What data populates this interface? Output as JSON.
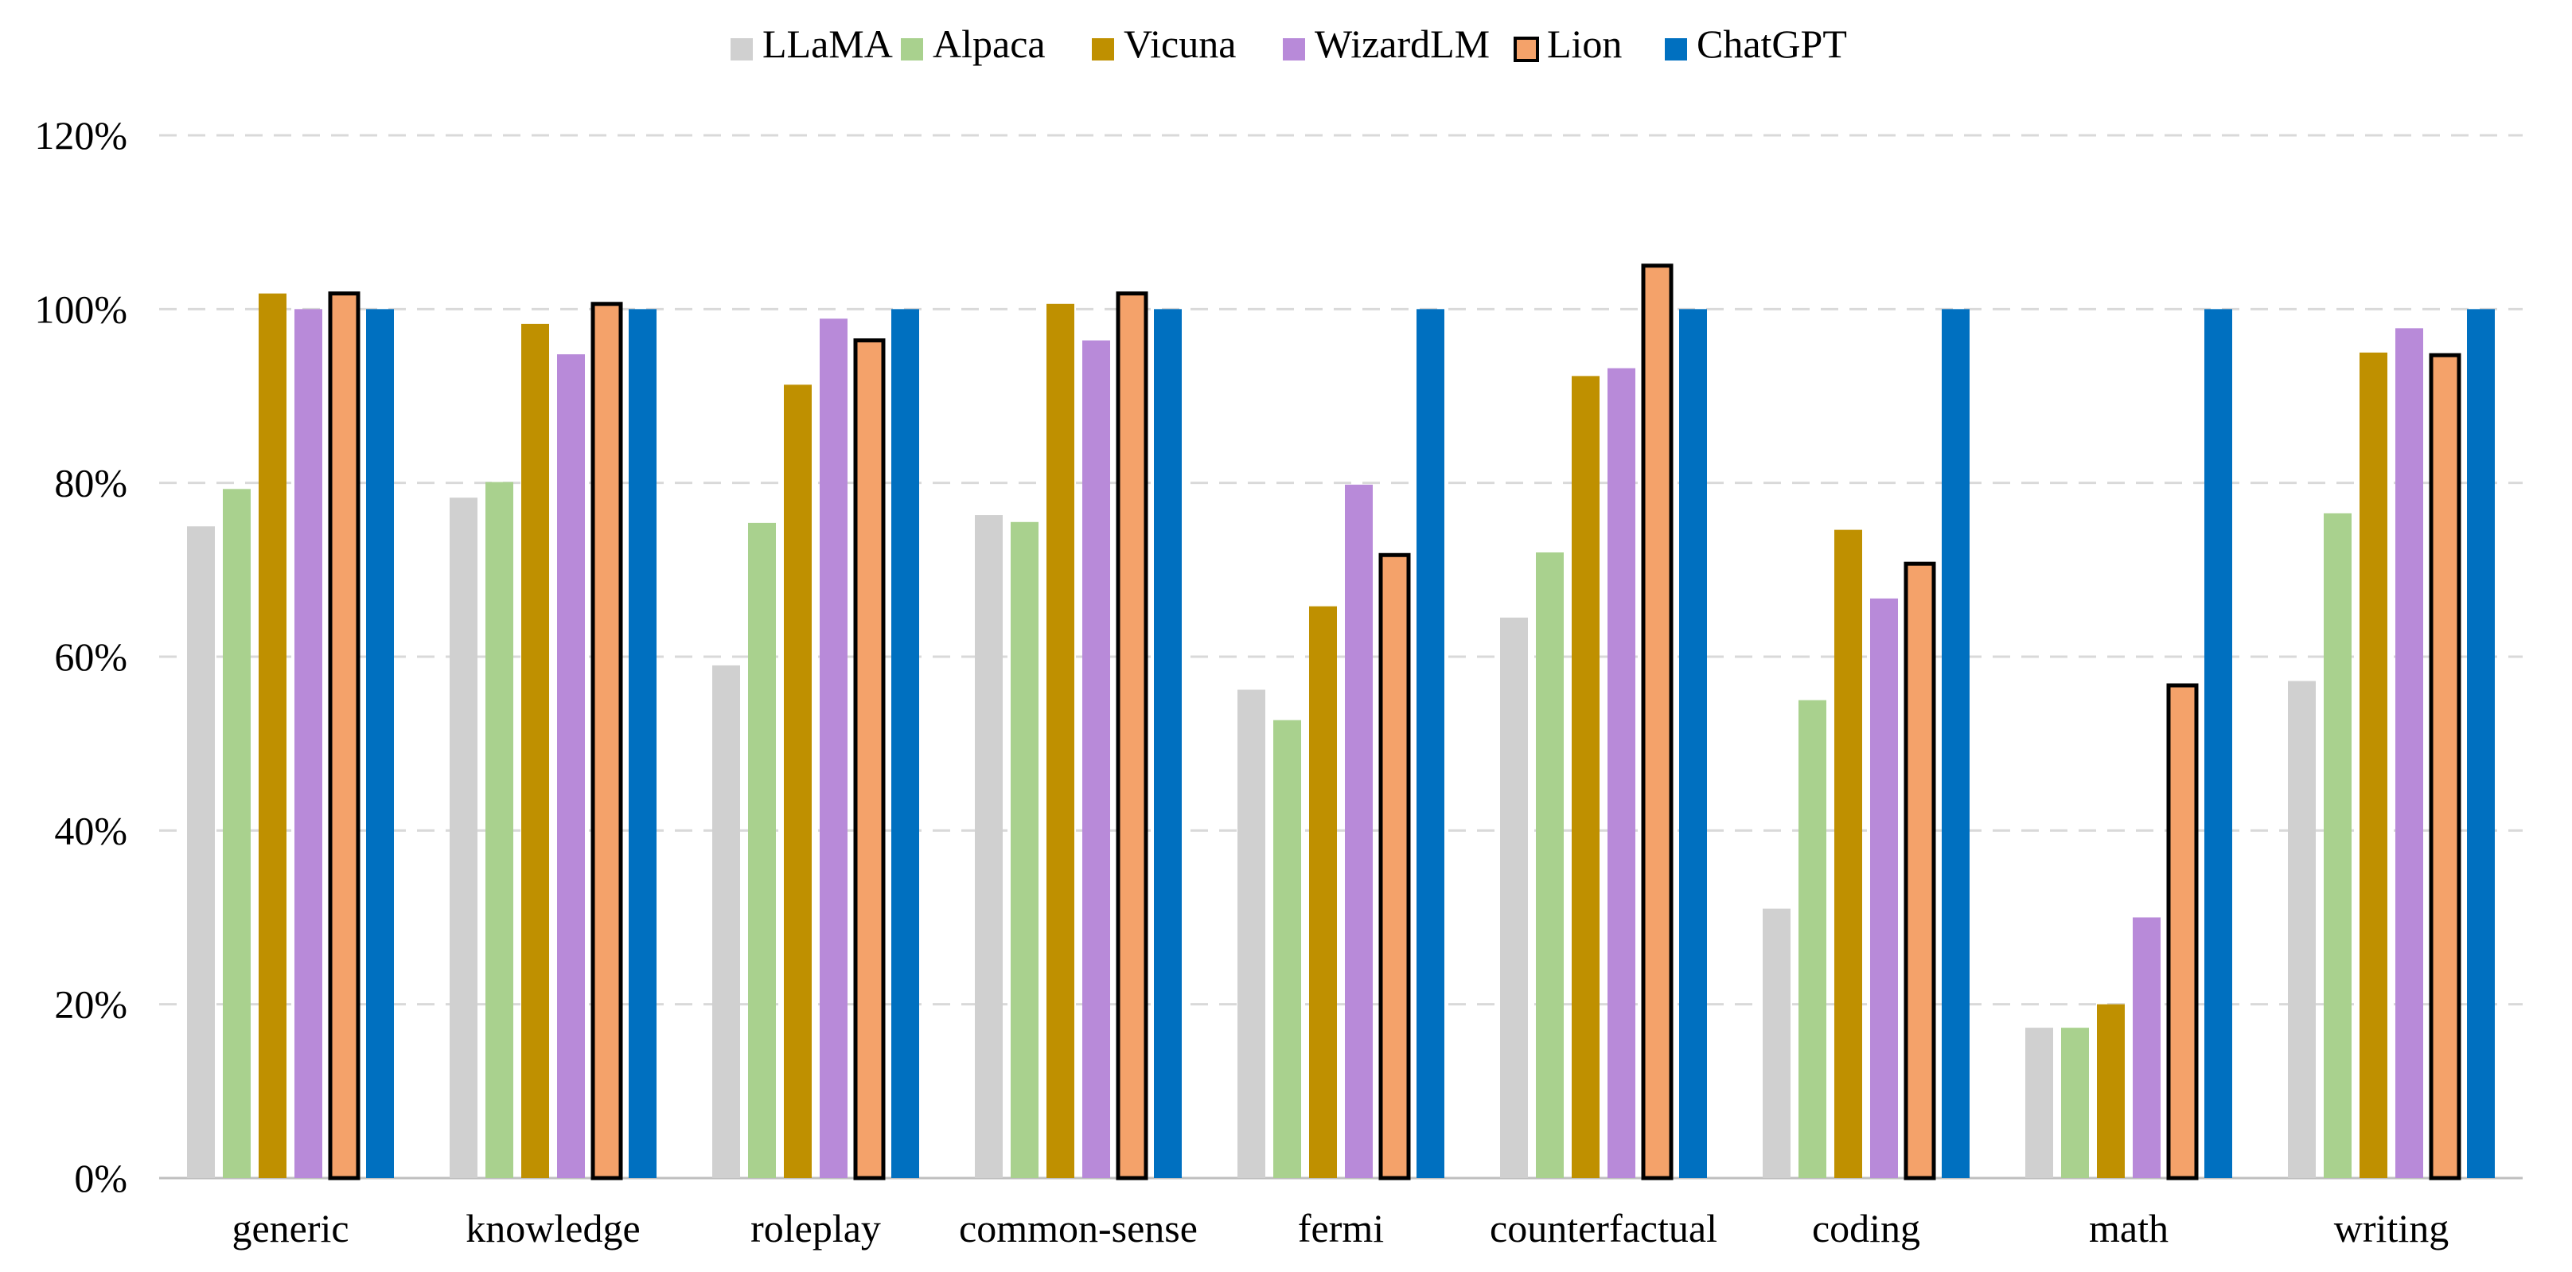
{
  "chart_data": {
    "type": "bar",
    "title": "",
    "xlabel": "",
    "ylabel": "",
    "ylim": [
      0,
      120
    ],
    "y_ticks": [
      "0%",
      "20%",
      "40%",
      "60%",
      "80%",
      "100%",
      "120%"
    ],
    "y_tick_values": [
      0,
      20,
      40,
      60,
      80,
      100,
      120
    ],
    "grid": true,
    "legend_position": "top-center",
    "categories": [
      "generic",
      "knowledge",
      "roleplay",
      "common-sense",
      "fermi",
      "counterfactual",
      "coding",
      "math",
      "writing"
    ],
    "series": [
      {
        "name": "LLaMA",
        "color": "#d0d0d0",
        "outlined": false,
        "values": [
          75,
          78.3,
          59,
          76.3,
          56.2,
          64.5,
          31,
          17.3,
          57.2
        ]
      },
      {
        "name": "Alpaca",
        "color": "#a9d18e",
        "outlined": false,
        "values": [
          79.3,
          80.1,
          75.4,
          75.5,
          52.7,
          72,
          55,
          17.3,
          76.5
        ]
      },
      {
        "name": "Vicuna",
        "color": "#bf9000",
        "outlined": false,
        "values": [
          101.8,
          98.3,
          91.3,
          100.6,
          65.8,
          92.3,
          74.6,
          20,
          95
        ]
      },
      {
        "name": "WizardLM",
        "color": "#b88ad9",
        "outlined": false,
        "values": [
          100,
          94.8,
          98.9,
          96.4,
          79.8,
          93.2,
          66.7,
          30,
          97.8
        ]
      },
      {
        "name": "Lion",
        "color": "#f4a26a",
        "outlined": true,
        "values": [
          101.8,
          100.6,
          96.4,
          101.8,
          71.7,
          105,
          70.7,
          56.7,
          94.7
        ]
      },
      {
        "name": "ChatGPT",
        "color": "#0070c0",
        "outlined": false,
        "values": [
          100,
          100,
          100,
          100,
          100,
          100,
          100,
          100,
          100
        ]
      }
    ]
  }
}
